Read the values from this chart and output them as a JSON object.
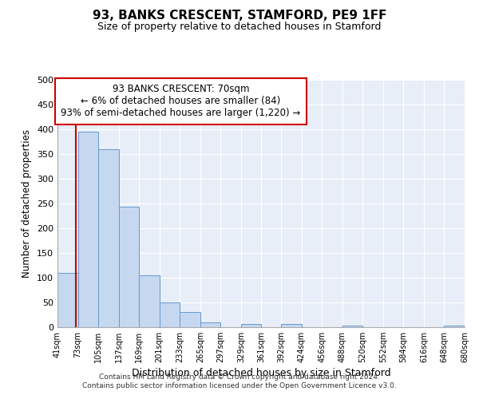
{
  "title": "93, BANKS CRESCENT, STAMFORD, PE9 1FF",
  "subtitle": "Size of property relative to detached houses in Stamford",
  "xlabel": "Distribution of detached houses by size in Stamford",
  "ylabel": "Number of detached properties",
  "bin_labels": [
    "41sqm",
    "73sqm",
    "105sqm",
    "137sqm",
    "169sqm",
    "201sqm",
    "233sqm",
    "265sqm",
    "297sqm",
    "329sqm",
    "361sqm",
    "392sqm",
    "424sqm",
    "456sqm",
    "488sqm",
    "520sqm",
    "552sqm",
    "584sqm",
    "616sqm",
    "648sqm",
    "680sqm"
  ],
  "bin_edges": [
    41,
    73,
    105,
    137,
    169,
    201,
    233,
    265,
    297,
    329,
    361,
    392,
    424,
    456,
    488,
    520,
    552,
    584,
    616,
    648,
    680
  ],
  "bar_heights": [
    110,
    395,
    360,
    243,
    105,
    50,
    30,
    10,
    0,
    7,
    0,
    7,
    0,
    0,
    3,
    0,
    0,
    0,
    0,
    3
  ],
  "bar_color": "#c5d8f0",
  "bar_edge_color": "#6699cc",
  "property_size": 70,
  "vline_color": "#cc0000",
  "annotation_line1": "93 BANKS CRESCENT: 70sqm",
  "annotation_line2": "← 6% of detached houses are smaller (84)",
  "annotation_line3": "93% of semi-detached houses are larger (1,220) →",
  "annotation_box_edge_color": "#cc0000",
  "background_color": "#e8eef8",
  "grid_color": "#ffffff",
  "ylim": [
    0,
    500
  ],
  "yticks": [
    0,
    50,
    100,
    150,
    200,
    250,
    300,
    350,
    400,
    450,
    500
  ],
  "title_fontsize": 11,
  "subtitle_fontsize": 9,
  "footer_line1": "Contains HM Land Registry data © Crown copyright and database right 2024.",
  "footer_line2": "Contains public sector information licensed under the Open Government Licence v3.0."
}
